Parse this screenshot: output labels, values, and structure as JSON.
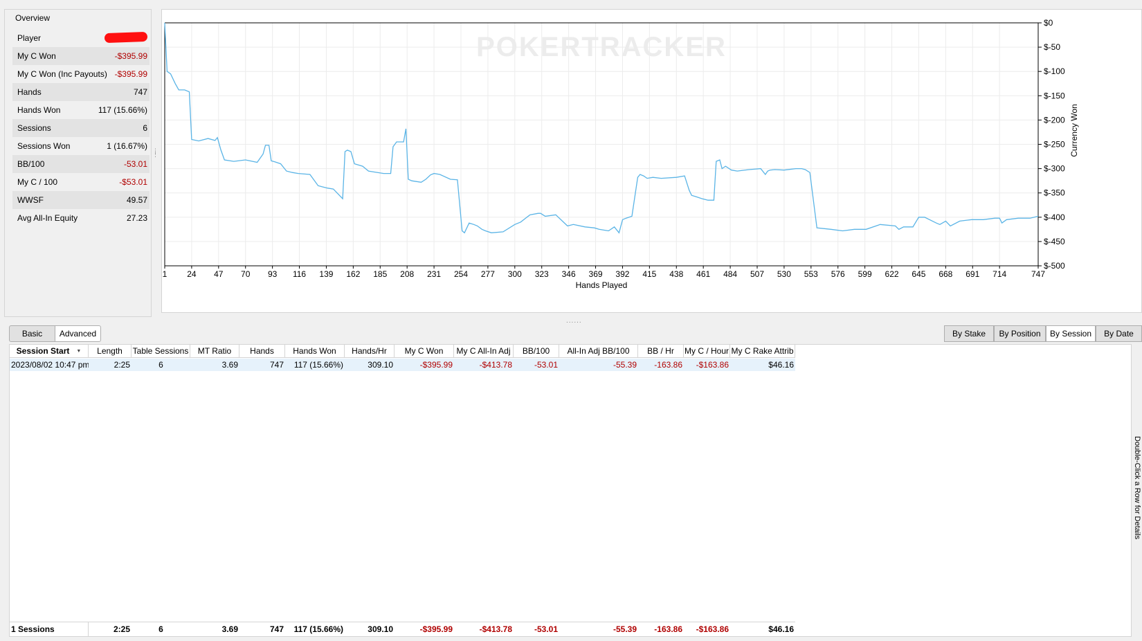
{
  "overview": {
    "title": "Overview",
    "rows": [
      {
        "label": "Player",
        "value": "",
        "redacted": true
      },
      {
        "label": "My C Won",
        "value": "-$395.99",
        "negative": true
      },
      {
        "label": "My C Won (Inc Payouts)",
        "value": "-$395.99",
        "negative": true
      },
      {
        "label": "Hands",
        "value": "747"
      },
      {
        "label": "Hands Won",
        "value": "117 (15.66%)"
      },
      {
        "label": "Sessions",
        "value": "6"
      },
      {
        "label": "Sessions Won",
        "value": "1 (16.67%)"
      },
      {
        "label": "BB/100",
        "value": "-53.01",
        "negative": true
      },
      {
        "label": "My C / 100",
        "value": "-$53.01",
        "negative": true
      },
      {
        "label": "WWSF",
        "value": "49.57"
      },
      {
        "label": "Avg All-In Equity",
        "value": "27.23"
      }
    ]
  },
  "chart_data": {
    "type": "line",
    "watermark": "POKERTRACKER",
    "xlabel": "Hands Played",
    "ylabel": "Currency Won",
    "x_ticks": [
      1,
      24,
      47,
      70,
      93,
      116,
      139,
      162,
      185,
      208,
      231,
      254,
      277,
      300,
      323,
      346,
      369,
      392,
      415,
      438,
      461,
      484,
      507,
      530,
      553,
      576,
      599,
      622,
      645,
      668,
      691,
      714,
      747
    ],
    "y_ticks": [
      "$0",
      "$-50",
      "$-100",
      "$-150",
      "$-200",
      "$-250",
      "$-300",
      "$-350",
      "$-400",
      "$-450",
      "$-500"
    ],
    "xlim": [
      1,
      747
    ],
    "ylim": [
      -500,
      0
    ],
    "grid": true,
    "y_axis_side": "right",
    "color": "#5ab4e6",
    "series": [
      {
        "x": [
          1,
          3,
          6,
          10,
          13,
          18,
          22,
          24,
          30,
          38,
          44,
          46,
          49,
          52,
          60,
          70,
          80,
          85,
          87,
          90,
          92,
          95,
          100,
          105,
          110,
          115,
          125,
          132,
          135,
          140,
          145,
          153,
          155,
          157,
          160,
          163,
          170,
          175,
          180,
          188,
          194,
          196,
          199,
          205,
          207,
          209,
          212,
          220,
          224,
          228,
          231,
          236,
          245,
          251,
          255,
          257,
          261,
          265,
          268,
          272,
          275,
          280,
          290,
          300,
          305,
          313,
          320,
          322,
          326,
          335,
          345,
          350,
          360,
          368,
          372,
          380,
          385,
          389,
          392,
          395,
          400,
          405,
          407,
          410,
          413,
          418,
          425,
          438,
          445,
          449,
          451,
          455,
          460,
          465,
          470,
          472,
          475,
          477,
          480,
          485,
          490,
          500,
          510,
          514,
          516,
          518,
          522,
          530,
          540,
          545,
          548,
          552,
          558,
          570,
          580,
          590,
          600,
          612,
          625,
          628,
          632,
          640,
          645,
          650,
          660,
          663,
          668,
          672,
          680,
          690,
          700,
          710,
          714,
          716,
          720,
          730,
          740,
          747
        ],
        "y": [
          0,
          -100,
          -105,
          -125,
          -138,
          -138,
          -142,
          -240,
          -243,
          -238,
          -242,
          -236,
          -262,
          -282,
          -285,
          -282,
          -287,
          -270,
          -252,
          -252,
          -284,
          -286,
          -290,
          -305,
          -308,
          -310,
          -312,
          -335,
          -337,
          -340,
          -342,
          -362,
          -265,
          -262,
          -265,
          -290,
          -295,
          -305,
          -307,
          -310,
          -310,
          -255,
          -245,
          -245,
          -218,
          -322,
          -325,
          -328,
          -322,
          -313,
          -310,
          -312,
          -322,
          -323,
          -428,
          -432,
          -412,
          -415,
          -418,
          -425,
          -428,
          -432,
          -430,
          -415,
          -410,
          -395,
          -392,
          -392,
          -398,
          -395,
          -418,
          -415,
          -420,
          -422,
          -425,
          -428,
          -420,
          -432,
          -405,
          -402,
          -398,
          -318,
          -312,
          -315,
          -320,
          -318,
          -320,
          -318,
          -315,
          -345,
          -355,
          -358,
          -362,
          -365,
          -365,
          -285,
          -282,
          -300,
          -295,
          -303,
          -305,
          -302,
          -300,
          -312,
          -305,
          -303,
          -302,
          -303,
          -300,
          -300,
          -302,
          -308,
          -422,
          -425,
          -428,
          -425,
          -425,
          -415,
          -418,
          -425,
          -420,
          -420,
          -400,
          -400,
          -412,
          -415,
          -408,
          -418,
          -408,
          -405,
          -405,
          -402,
          -402,
          -412,
          -405,
          -402,
          -402,
          -398
        ]
      }
    ]
  },
  "toolbar": {
    "basic": "Basic",
    "advanced": "Advanced",
    "by_stake": "By Stake",
    "by_position": "By Position",
    "by_session": "By Session",
    "by_date": "By Date"
  },
  "table": {
    "columns": [
      "Session Start",
      "Length",
      "Table Sessions",
      "MT Ratio",
      "Hands",
      "Hands Won",
      "Hands/Hr",
      "My C Won",
      "My C All-In Adj",
      "BB/100",
      "All-In Adj BB/100",
      "BB / Hr",
      "My C / Hour",
      "My C Rake Attrib"
    ],
    "rows": [
      [
        "2023/08/02 10:47 pm",
        "2:25",
        "6",
        "3.69",
        "747",
        "117 (15.66%)",
        "309.10",
        "-$395.99",
        "-$413.78",
        "-53.01",
        "-55.39",
        "-163.86",
        "-$163.86",
        "$46.16"
      ]
    ],
    "footer": [
      "1 Sessions",
      "2:25",
      "6",
      "3.69",
      "747",
      "117 (15.66%)",
      "309.10",
      "-$395.99",
      "-$413.78",
      "-53.01",
      "-55.39",
      "-163.86",
      "-$163.86",
      "$46.16"
    ],
    "negative_columns": [
      7,
      8,
      9,
      10,
      11,
      12
    ]
  },
  "side_hint": "Double-Click a Row for Details"
}
